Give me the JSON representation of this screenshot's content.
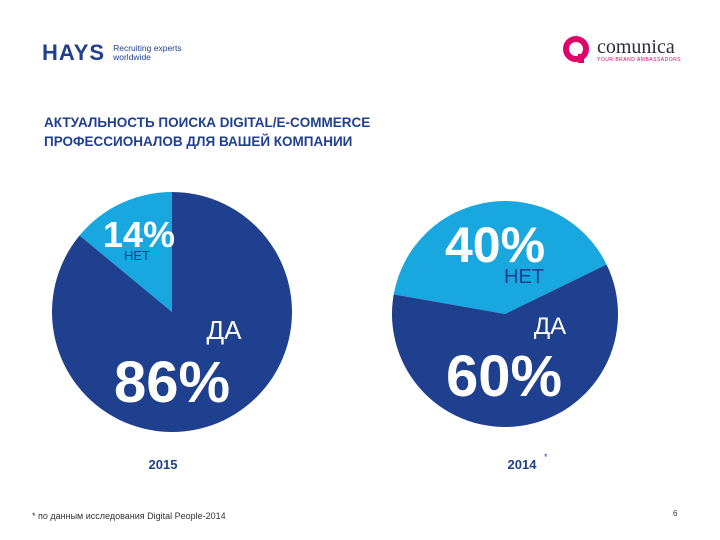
{
  "logos": {
    "hays_word": "HAYS",
    "hays_tag_line1": "Recruiting experts",
    "hays_tag_line2": "worldwide",
    "comunica_word": "comunica",
    "comunica_tag": "YOUR BRAND AMBASSADORS"
  },
  "title": {
    "line1": "АКТУАЛЬНОСТЬ ПОИСКА DIGITAL/E-COMMERCE",
    "line2": "ПРОФЕССИОНАЛОВ ДЛЯ ВАШЕЙ КОМПАНИИ"
  },
  "chart_data": [
    {
      "type": "pie",
      "title": "2015",
      "categories": [
        "НЕТ",
        "ДА"
      ],
      "values": [
        14,
        86
      ],
      "labels": [
        "14%",
        "86%"
      ],
      "colors": [
        "#19a7e0",
        "#1f3f8f"
      ]
    },
    {
      "type": "pie",
      "title": "2014",
      "title_marker": "*",
      "categories": [
        "НЕТ",
        "ДА"
      ],
      "values": [
        40,
        60
      ],
      "labels": [
        "40%",
        "60%"
      ],
      "colors": [
        "#19a7e0",
        "#1f3f8f"
      ]
    }
  ],
  "footnote": "* по данным исследования Digital People-2014",
  "page_number": "6"
}
